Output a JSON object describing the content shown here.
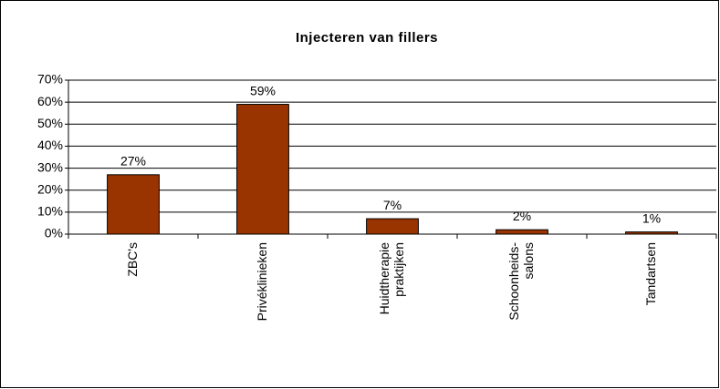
{
  "chart_data": {
    "type": "bar",
    "title": "Injecteren van fillers",
    "categories": [
      "ZBC's",
      "Privéklinieken",
      "Huidtherapie praktijken",
      "Schoonheids-salons",
      "Tandartsen"
    ],
    "values": [
      27,
      59,
      7,
      2,
      1
    ],
    "value_labels": [
      "27%",
      "59%",
      "7%",
      "2%",
      "1%"
    ],
    "color": "#993300",
    "ylim": [
      0,
      70
    ],
    "yticks": [
      {
        "value": 0,
        "label": "0%"
      },
      {
        "value": 10,
        "label": "10%"
      },
      {
        "value": 20,
        "label": "20%"
      },
      {
        "value": 30,
        "label": "30%"
      },
      {
        "value": 40,
        "label": "40%"
      },
      {
        "value": 50,
        "label": "50%"
      },
      {
        "value": 60,
        "label": "60%"
      },
      {
        "value": 70,
        "label": "70%"
      }
    ],
    "grid": true
  }
}
